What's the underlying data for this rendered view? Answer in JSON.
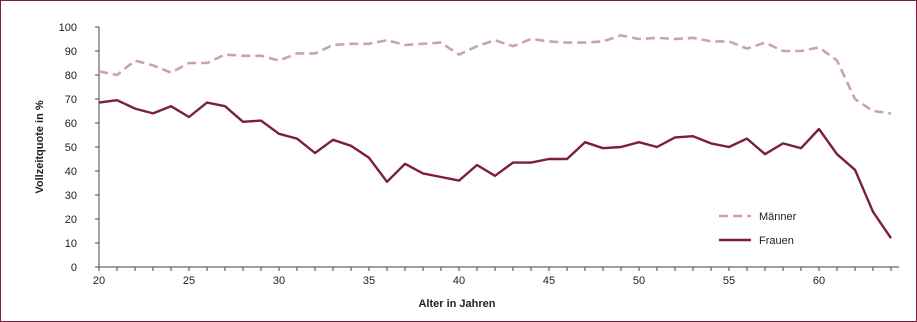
{
  "chart_data": {
    "type": "line",
    "xlabel": "Alter in Jahren",
    "ylabel": "Vollzeitquote in %",
    "xlim": [
      20,
      64
    ],
    "ylim": [
      0,
      100
    ],
    "x_ticks": [
      20,
      25,
      30,
      35,
      40,
      45,
      50,
      55,
      60
    ],
    "y_ticks": [
      0,
      10,
      20,
      30,
      40,
      50,
      60,
      70,
      80,
      90,
      100
    ],
    "grid": false,
    "legend_position": "lower-right",
    "x": [
      20,
      21,
      22,
      23,
      24,
      25,
      26,
      27,
      28,
      29,
      30,
      31,
      32,
      33,
      34,
      35,
      36,
      37,
      38,
      39,
      40,
      41,
      42,
      43,
      44,
      45,
      46,
      47,
      48,
      49,
      50,
      51,
      52,
      53,
      54,
      55,
      56,
      57,
      58,
      59,
      60,
      61,
      62,
      63,
      64
    ],
    "series": [
      {
        "name": "Männer",
        "color": "#c9a3ad",
        "dash": "dashed",
        "values": [
          81.5,
          80,
          86,
          84,
          81,
          85,
          85,
          88.5,
          88,
          88,
          86,
          89,
          89,
          92.5,
          93,
          93,
          94.5,
          92.5,
          93,
          93.5,
          88.5,
          92,
          94.5,
          92,
          95,
          94,
          93.5,
          93.5,
          94,
          96.5,
          95,
          95.5,
          95,
          95.5,
          94,
          94,
          91,
          93.5,
          90,
          90,
          91.5,
          86,
          70,
          65,
          64
        ]
      },
      {
        "name": "Frauen",
        "color": "#7a1f3d",
        "dash": "solid",
        "values": [
          68.5,
          69.5,
          66,
          64,
          67,
          62.5,
          68.5,
          67,
          60.5,
          61,
          55.5,
          53.5,
          47.5,
          53,
          50.5,
          45.5,
          35.5,
          43,
          39,
          37.5,
          36,
          42.5,
          38,
          43.5,
          43.5,
          45,
          45,
          52,
          49.5,
          50,
          52,
          50,
          54,
          54.5,
          51.5,
          50,
          53.5,
          47,
          51.5,
          49.5,
          57.5,
          47,
          40.5,
          23,
          12
        ]
      }
    ]
  }
}
